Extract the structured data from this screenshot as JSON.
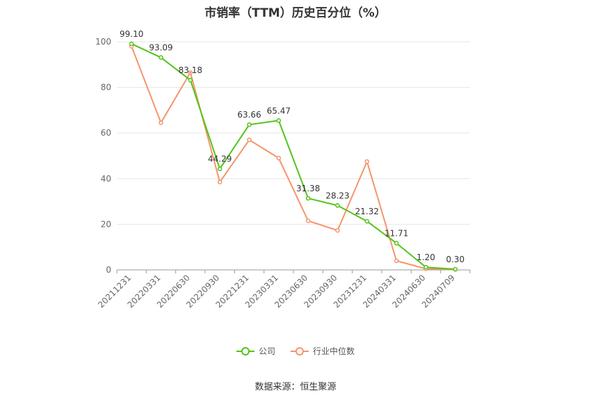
{
  "chart_data": {
    "type": "line",
    "title": "市销率（TTM）历史百分位（%）",
    "categories": [
      "20211231",
      "20220331",
      "20220630",
      "20220930",
      "20221231",
      "20230331",
      "20230630",
      "20230930",
      "20231231",
      "20240331",
      "20240630",
      "20240709"
    ],
    "ylim": [
      0,
      100
    ],
    "yticks": [
      0,
      20,
      40,
      60,
      80,
      100
    ],
    "grid": true,
    "legend_position": "bottom",
    "series": [
      {
        "name": "公司",
        "color": "#52c41a",
        "show_labels": true,
        "values": [
          99.1,
          93.09,
          83.18,
          44.29,
          63.66,
          65.47,
          31.38,
          28.23,
          21.32,
          11.71,
          1.2,
          0.3
        ],
        "labels": [
          "99.10",
          "93.09",
          "83.18",
          "44.29",
          "63.66",
          "65.47",
          "31.38",
          "28.23",
          "21.32",
          "11.71",
          "1.20",
          "0.30"
        ]
      },
      {
        "name": "行业中位数",
        "color": "#f4956a",
        "show_labels": false,
        "values": [
          98.0,
          64.5,
          86.5,
          38.5,
          57.0,
          49.0,
          21.5,
          17.3,
          47.5,
          4.0,
          0.5,
          0.2
        ]
      }
    ]
  },
  "source": "数据来源：恒生聚源"
}
